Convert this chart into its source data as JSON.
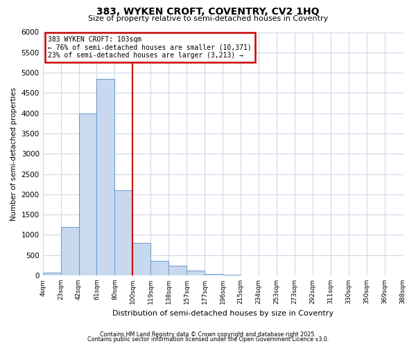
{
  "title": "383, WYKEN CROFT, COVENTRY, CV2 1HQ",
  "subtitle": "Size of property relative to semi-detached houses in Coventry",
  "xlabel": "Distribution of semi-detached houses by size in Coventry",
  "ylabel": "Number of semi-detached properties",
  "bar_values": [
    75,
    1200,
    4000,
    4850,
    2100,
    800,
    350,
    230,
    120,
    40,
    10,
    0,
    0,
    0,
    0,
    0,
    0,
    0,
    0,
    0
  ],
  "bar_labels": [
    "4sqm",
    "23sqm",
    "42sqm",
    "61sqm",
    "80sqm",
    "100sqm",
    "119sqm",
    "138sqm",
    "157sqm",
    "177sqm",
    "196sqm",
    "215sqm",
    "234sqm",
    "253sqm",
    "273sqm",
    "292sqm",
    "311sqm",
    "330sqm",
    "350sqm",
    "369sqm",
    "388sqm"
  ],
  "ylim": [
    0,
    6000
  ],
  "yticks": [
    0,
    500,
    1000,
    1500,
    2000,
    2500,
    3000,
    3500,
    4000,
    4500,
    5000,
    5500,
    6000
  ],
  "bar_color": "#c8d8ee",
  "bar_edge_color": "#6699cc",
  "property_line_x": 5,
  "property_line_label": "383 WYKEN CROFT: 103sqm",
  "annotation_smaller": "← 76% of semi-detached houses are smaller (10,371)",
  "annotation_larger": "23% of semi-detached houses are larger (3,213) →",
  "annotation_box_color": "#ffffff",
  "annotation_box_edge_color": "#cc0000",
  "line_color": "#cc0000",
  "footer1": "Contains HM Land Registry data © Crown copyright and database right 2025.",
  "footer2": "Contains public sector information licensed under the Open Government Licence v3.0.",
  "background_color": "#ffffff",
  "grid_color": "#ccd8e8"
}
